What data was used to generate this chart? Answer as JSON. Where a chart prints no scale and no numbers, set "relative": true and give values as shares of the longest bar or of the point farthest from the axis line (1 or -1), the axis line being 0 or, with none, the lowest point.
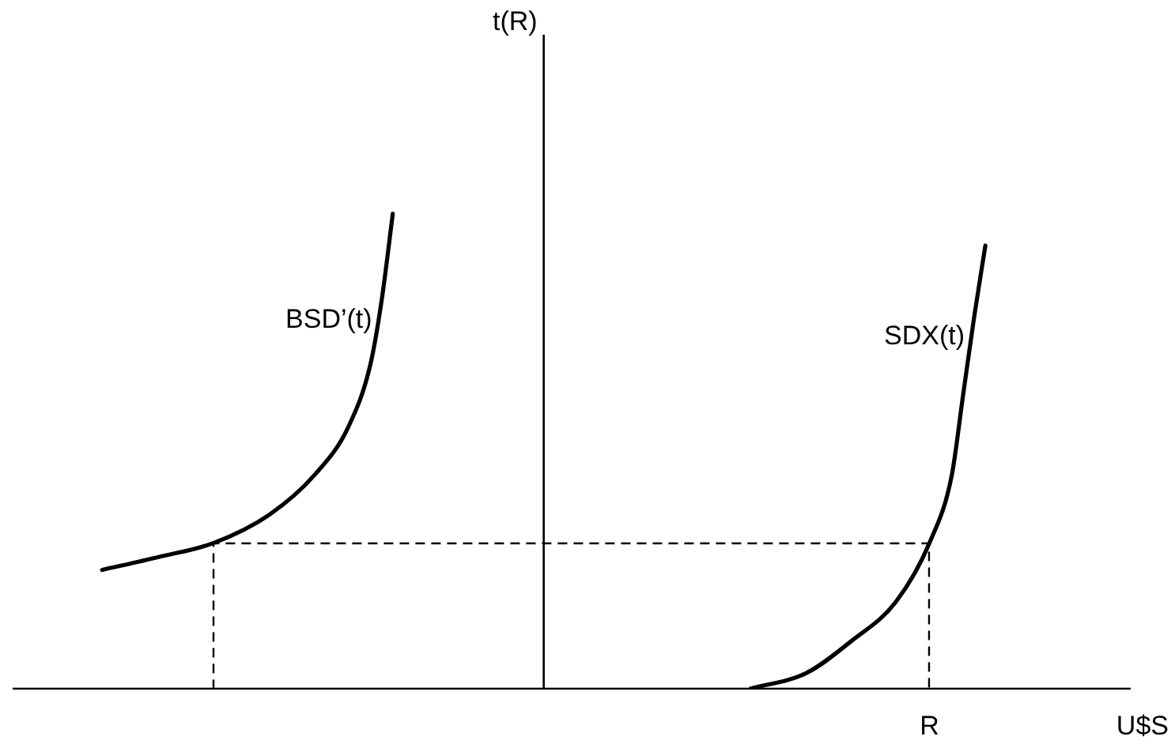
{
  "chart_data": {
    "type": "line",
    "relative": true,
    "xlabel": "U$S",
    "annotations": [
      "t(R)",
      "R"
    ],
    "grid": false,
    "legend": false,
    "marker": "none",
    "line_style": "solid",
    "categories": [
      null,
      null,
      null,
      null,
      null,
      null,
      null,
      null,
      null,
      null,
      null,
      null,
      null,
      null,
      null,
      null,
      null,
      null,
      null,
      null,
      null,
      null,
      null,
      null,
      null,
      null,
      null,
      null,
      null,
      null,
      null,
      null,
      null,
      null,
      null,
      null,
      null,
      null,
      null,
      null,
      null,
      null,
      null,
      null,
      null,
      null,
      null,
      null,
      null,
      null,
      null,
      null,
      null,
      null,
      null,
      null,
      null,
      null,
      null,
      null,
      null,
      null,
      null,
      null,
      null,
      null,
      null,
      null,
      null,
      null,
      null,
      null,
      null,
      null,
      null,
      null,
      null,
      null,
      null,
      null,
      null,
      null,
      null,
      null,
      null,
      null,
      null,
      null,
      null,
      null,
      null,
      null,
      null,
      null,
      null,
      null,
      null,
      null,
      null,
      null,
      null
    ],
    "series": [
      {
        "name": "BSD’(t)",
        "color": "#000000",
        "values": [
          null,
          null,
          null,
          null,
          null,
          null,
          null,
          null,
          0.25,
          null,
          null,
          null,
          null,
          0.277,
          null,
          null,
          null,
          null,
          0.307,
          null,
          null,
          null,
          null,
          0.367,
          null,
          null,
          null,
          0.45,
          null,
          null,
          0.55,
          null,
          0.683,
          0.817,
          1,
          null,
          null,
          null,
          null,
          null,
          null,
          null,
          null,
          null,
          null,
          null,
          null,
          null,
          null,
          null,
          null,
          null,
          null,
          null,
          null,
          null,
          null,
          null,
          null,
          null,
          null,
          null,
          null,
          null,
          null,
          null,
          null,
          null,
          null,
          null,
          null,
          null,
          null,
          null,
          null,
          null,
          null,
          null,
          null,
          null,
          null,
          null,
          null,
          null,
          null,
          null,
          null,
          null,
          null,
          null,
          null,
          null,
          null,
          null,
          null,
          null,
          null,
          null,
          null,
          null,
          null
        ]
      },
      {
        "name": "SDX(t)",
        "color": "#000000",
        "values": [
          null,
          null,
          null,
          null,
          null,
          null,
          null,
          null,
          null,
          null,
          null,
          null,
          null,
          null,
          null,
          null,
          null,
          null,
          null,
          null,
          null,
          null,
          null,
          null,
          null,
          null,
          null,
          null,
          null,
          null,
          null,
          null,
          null,
          null,
          null,
          null,
          null,
          null,
          null,
          null,
          null,
          null,
          null,
          null,
          null,
          null,
          null,
          null,
          null,
          null,
          null,
          null,
          null,
          null,
          null,
          null,
          null,
          null,
          null,
          null,
          null,
          null,
          null,
          null,
          null,
          null,
          0,
          null,
          null,
          null,
          null,
          0.033,
          null,
          null,
          null,
          0.1,
          null,
          null,
          null,
          0.183,
          null,
          null,
          0.307,
          null,
          0.45,
          0.617,
          0.783,
          0.933,
          null,
          null,
          null,
          null,
          null,
          null,
          null,
          null,
          null,
          null,
          null,
          null,
          null
        ]
      }
    ]
  }
}
